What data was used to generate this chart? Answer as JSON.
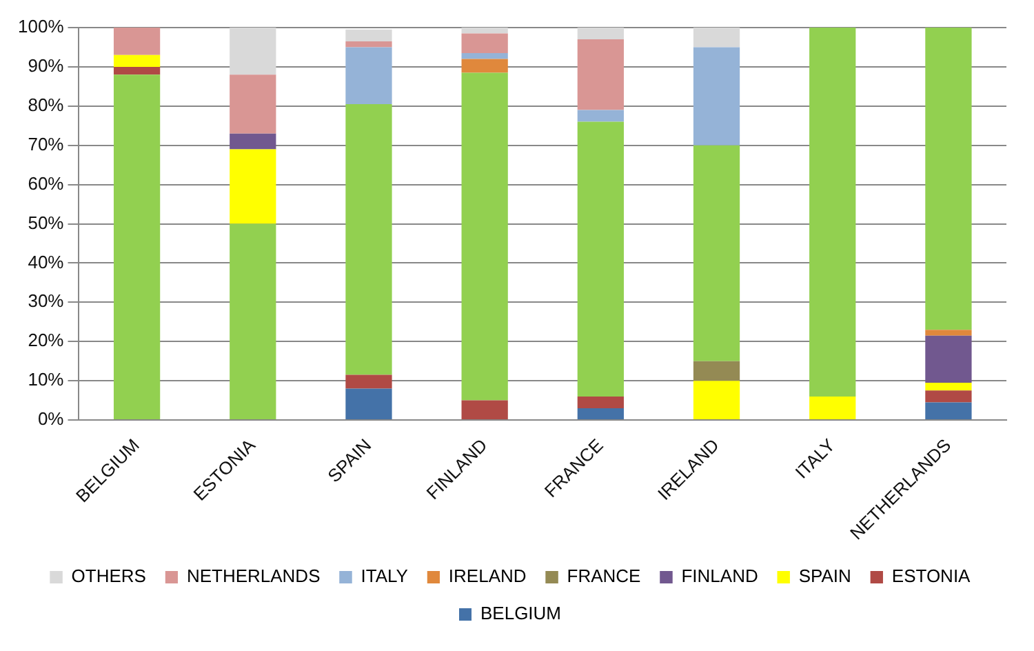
{
  "chart_data": {
    "type": "bar",
    "stacked": true,
    "categories": [
      "BELGIUM",
      "ESTONIA",
      "SPAIN",
      "FINLAND",
      "FRANCE",
      "IRELAND",
      "ITALY",
      "NETHERLANDS"
    ],
    "ylim": [
      0,
      100
    ],
    "yticks": [
      {
        "value": 0,
        "label": "0%"
      },
      {
        "value": 10,
        "label": "10%"
      },
      {
        "value": 20,
        "label": "20%"
      },
      {
        "value": 30,
        "label": "30%"
      },
      {
        "value": 40,
        "label": "40%"
      },
      {
        "value": 50,
        "label": "50%"
      },
      {
        "value": 60,
        "label": "60%"
      },
      {
        "value": 70,
        "label": "70%"
      },
      {
        "value": 80,
        "label": "80%"
      },
      {
        "value": 90,
        "label": "90%"
      },
      {
        "value": 100,
        "label": "100%"
      }
    ],
    "grid": "y",
    "legend": "bottom",
    "series": [
      {
        "name": "BELGIUM",
        "color": "#4472a8",
        "colors": [
          "#92d050",
          "#4472a8",
          "#4472a8",
          "#4472a8",
          "#4472a8",
          "#4472a8",
          "#4472a8",
          "#4472a8"
        ],
        "values": [
          88,
          0,
          8,
          0,
          3,
          0,
          0,
          4.5
        ]
      },
      {
        "name": "ESTONIA",
        "color": "#b04a45",
        "colors": [
          "#b04a45",
          "#92d050",
          "#b04a45",
          "#b04a45",
          "#b04a45",
          "#b04a45",
          "#b04a45",
          "#b04a45"
        ],
        "values": [
          2,
          50,
          3.5,
          5,
          3,
          0,
          0,
          3
        ]
      },
      {
        "name": "SPAIN",
        "color": "#ffff00",
        "colors": [
          "#ffff00",
          "#ffff00",
          "#92d050",
          "#ffff00",
          "#ffff00",
          "#ffff00",
          "#ffff00",
          "#ffff00"
        ],
        "values": [
          3,
          19,
          69,
          0,
          0,
          10,
          6,
          2
        ]
      },
      {
        "name": "FINLAND",
        "color": "#71588f",
        "colors": [
          "#71588f",
          "#71588f",
          "#71588f",
          "#92d050",
          "#71588f",
          "#71588f",
          "#71588f",
          "#71588f"
        ],
        "values": [
          0,
          4,
          0,
          83.5,
          0,
          0,
          0,
          12
        ]
      },
      {
        "name": "FRANCE",
        "color": "#948a54",
        "colors": [
          "#948a54",
          "#948a54",
          "#948a54",
          "#948a54",
          "#92d050",
          "#948a54",
          "#948a54",
          "#948a54"
        ],
        "values": [
          0,
          0,
          0,
          0,
          70,
          5,
          0,
          0
        ]
      },
      {
        "name": "IRELAND",
        "color": "#e0883c",
        "colors": [
          "#e0883c",
          "#e0883c",
          "#e0883c",
          "#e0883c",
          "#e0883c",
          "#92d050",
          "#e0883c",
          "#e0883c"
        ],
        "values": [
          0,
          0,
          0,
          3.5,
          0,
          55,
          0,
          1.5
        ]
      },
      {
        "name": "ITALY",
        "color": "#95b3d7",
        "colors": [
          "#95b3d7",
          "#95b3d7",
          "#95b3d7",
          "#95b3d7",
          "#95b3d7",
          "#95b3d7",
          "#92d050",
          "#95b3d7"
        ],
        "values": [
          0,
          0,
          14.5,
          1.5,
          3,
          25,
          94,
          0
        ]
      },
      {
        "name": "NETHERLANDS",
        "color": "#d99694",
        "colors": [
          "#d99694",
          "#d99694",
          "#d99694",
          "#d99694",
          "#d99694",
          "#d99694",
          "#d99694",
          "#92d050"
        ],
        "values": [
          7,
          15,
          1.5,
          5,
          18,
          0,
          0,
          77
        ]
      },
      {
        "name": "OTHERS",
        "color": "#d9d9d9",
        "colors": [
          "#d9d9d9",
          "#d9d9d9",
          "#d9d9d9",
          "#d9d9d9",
          "#d9d9d9",
          "#d9d9d9",
          "#d9d9d9",
          "#d9d9d9"
        ],
        "values": [
          0,
          12,
          3,
          1.5,
          3,
          5,
          0,
          0
        ]
      }
    ]
  }
}
